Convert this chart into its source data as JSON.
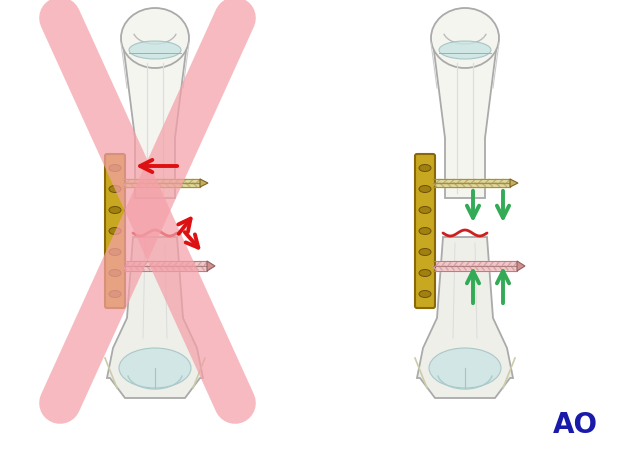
{
  "bg_color": "#ffffff",
  "ao_text": "AO",
  "ao_color": "#1a1aaa",
  "plate_color": "#c8a820",
  "plate_outline": "#8a6808",
  "screw_color_upper": "#e0d8a0",
  "screw_color_lower": "#f0c8c8",
  "screw_outline_upper": "#a09040",
  "screw_outline_lower": "#c09090",
  "fracture_color": "#cc2020",
  "x_cross_color": "#f4a0a8",
  "arrow_red": "#dd1111",
  "arrow_green": "#33aa55",
  "bone_fill": "#f5f5f0",
  "bone_fill2": "#efefea",
  "bone_outline": "#aaaaaa",
  "bone_inner": "#e8e8e4",
  "cartilage_fill": "#c8e4e4",
  "figsize": [
    6.2,
    4.59
  ],
  "dpi": 100
}
